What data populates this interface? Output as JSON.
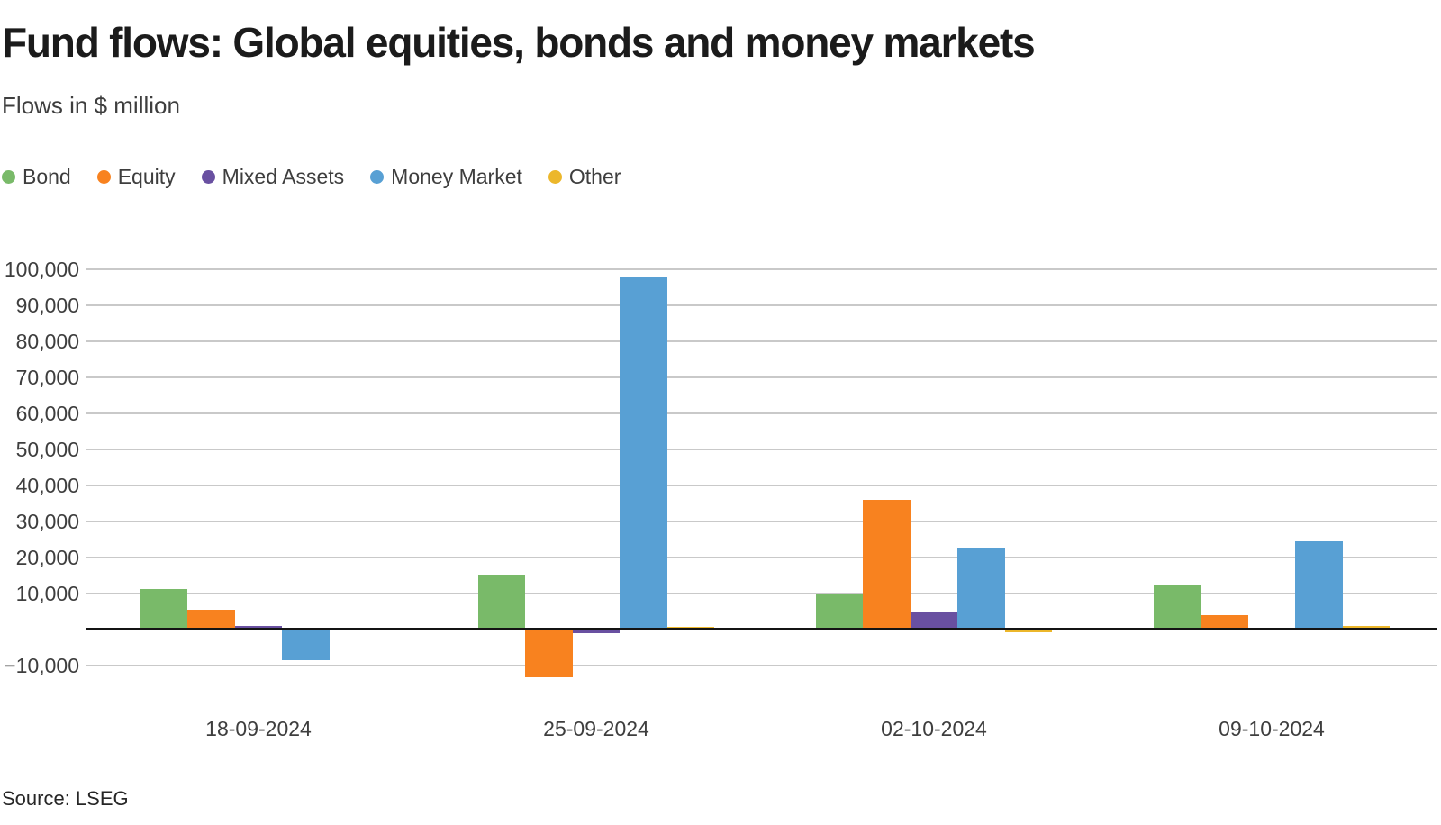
{
  "header": {
    "title": "Fund flows: Global equities, bonds and money markets",
    "subtitle": "Flows in $ million"
  },
  "footer": {
    "source": "Source: LSEG"
  },
  "colors": {
    "grid": "#c9c9c9",
    "zero_line": "#141414",
    "title_text": "#1b1b1b",
    "body_text": "#3e3e3e"
  },
  "chart_data": {
    "type": "bar",
    "title": "Fund flows: Global equities, bonds and money markets",
    "ylabel": "Flows in $ million",
    "categories": [
      "18-09-2024",
      "25-09-2024",
      "02-10-2024",
      "09-10-2024"
    ],
    "series": [
      {
        "name": "Bond",
        "color": "#79ba69",
        "values": [
          11200,
          15200,
          10000,
          12500
        ]
      },
      {
        "name": "Equity",
        "color": "#f8821f",
        "values": [
          5600,
          -13300,
          35900,
          3900
        ]
      },
      {
        "name": "Mixed Assets",
        "color": "#6950a1",
        "values": [
          900,
          -1100,
          4700,
          0
        ]
      },
      {
        "name": "Money Market",
        "color": "#58a0d4",
        "values": [
          -8500,
          98000,
          22800,
          24600
        ]
      },
      {
        "name": "Other",
        "color": "#ecb72b",
        "values": [
          100,
          800,
          -700,
          900
        ]
      }
    ],
    "yticks": [
      {
        "value": 100000,
        "label": "100,000"
      },
      {
        "value": 90000,
        "label": "90,000"
      },
      {
        "value": 80000,
        "label": "80,000"
      },
      {
        "value": 70000,
        "label": "70,000"
      },
      {
        "value": 60000,
        "label": "60,000"
      },
      {
        "value": 50000,
        "label": "50,000"
      },
      {
        "value": 40000,
        "label": "40,000"
      },
      {
        "value": 30000,
        "label": "30,000"
      },
      {
        "value": 20000,
        "label": "20,000"
      },
      {
        "value": 10000,
        "label": "10,000"
      },
      {
        "value": -10000,
        "label": "−10,000"
      }
    ],
    "ylim": [
      -15000,
      105000
    ],
    "grid": true,
    "legend_position": "top",
    "zero_line": true
  }
}
